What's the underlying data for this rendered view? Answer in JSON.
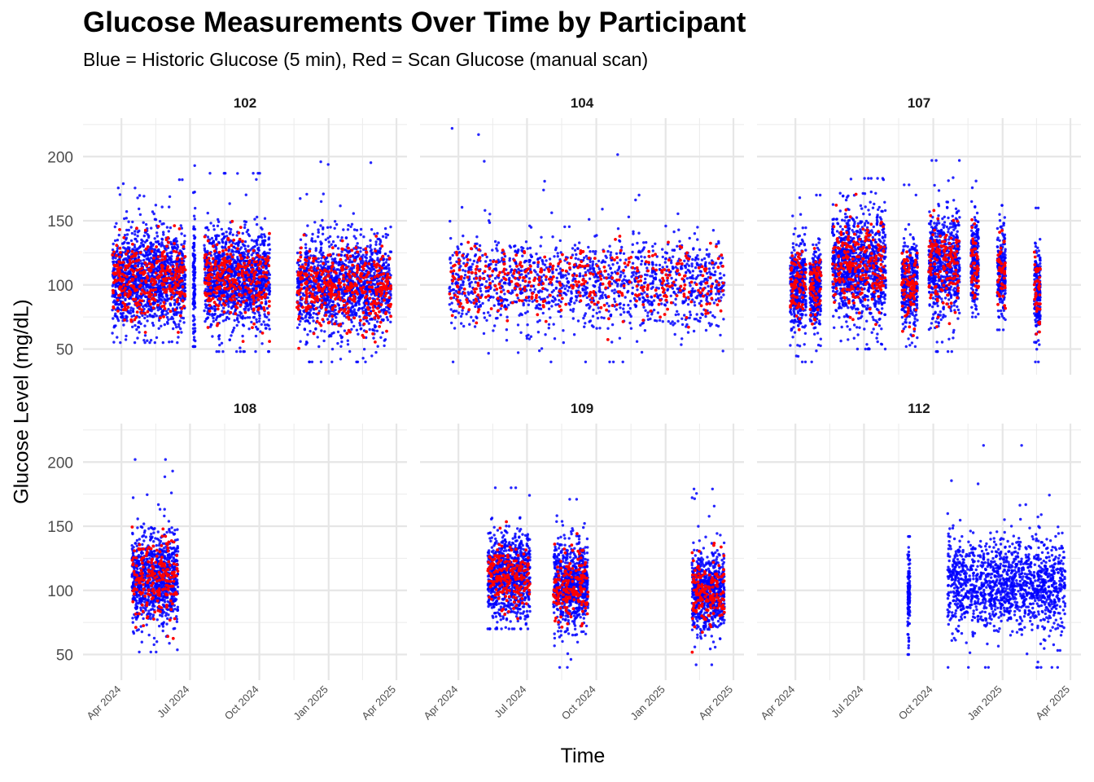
{
  "chart_data": {
    "type": "scatter",
    "title": "Glucose Measurements Over Time by Participant",
    "subtitle": "Blue = Historic Glucose (5 min), Red = Scan Glucose (manual scan)",
    "xlabel": "Time",
    "ylabel": "Glucose Level (mg/dL)",
    "x_range": [
      "2024-02-10",
      "2025-04-15"
    ],
    "ylim": [
      30,
      230
    ],
    "y_ticks": [
      50,
      100,
      150,
      200
    ],
    "x_ticks": [
      {
        "label": "Apr 2024",
        "date": "2024-04-01"
      },
      {
        "label": "Jul 2024",
        "date": "2024-07-01"
      },
      {
        "label": "Oct 2024",
        "date": "2024-10-01"
      },
      {
        "label": "Jan 2025",
        "date": "2025-01-01"
      },
      {
        "label": "Apr 2025",
        "date": "2025-04-01"
      }
    ],
    "grid": true,
    "legend": "none",
    "facet_layout": {
      "rows": 2,
      "cols": 3
    },
    "series_styles": [
      {
        "key": "historic",
        "color": "#0000ff"
      },
      {
        "key": "scan",
        "color": "#ff0000"
      }
    ],
    "panels": [
      {
        "participant": "102",
        "segments": [
          {
            "start": "2024-03-20",
            "end": "2024-06-25",
            "center": 105,
            "spread": 18,
            "min": 55,
            "max": 182,
            "scan": true
          },
          {
            "start": "2024-07-05",
            "end": "2024-07-08",
            "center": 100,
            "spread": 25,
            "min": 52,
            "max": 193,
            "scan": false
          },
          {
            "start": "2024-07-20",
            "end": "2024-10-15",
            "center": 105,
            "spread": 18,
            "min": 48,
            "max": 187,
            "scan": true
          },
          {
            "start": "2024-11-20",
            "end": "2025-03-25",
            "center": 100,
            "spread": 18,
            "min": 40,
            "max": 196,
            "scan": true
          }
        ]
      },
      {
        "participant": "104",
        "segments": [
          {
            "start": "2024-03-20",
            "end": "2025-03-20",
            "center": 102,
            "spread": 17,
            "min": 40,
            "max": 222,
            "scan": true
          }
        ]
      },
      {
        "participant": "107",
        "segments": [
          {
            "start": "2024-03-25",
            "end": "2024-04-15",
            "center": 100,
            "spread": 17,
            "min": 40,
            "max": 168,
            "scan": true
          },
          {
            "start": "2024-04-20",
            "end": "2024-05-05",
            "center": 98,
            "spread": 16,
            "min": 40,
            "max": 170,
            "scan": true
          },
          {
            "start": "2024-05-20",
            "end": "2024-07-30",
            "center": 115,
            "spread": 20,
            "min": 50,
            "max": 183,
            "scan": true
          },
          {
            "start": "2024-08-20",
            "end": "2024-09-10",
            "center": 100,
            "spread": 16,
            "min": 52,
            "max": 178,
            "scan": true
          },
          {
            "start": "2024-09-25",
            "end": "2024-11-05",
            "center": 115,
            "spread": 20,
            "min": 48,
            "max": 197,
            "scan": true
          },
          {
            "start": "2024-11-20",
            "end": "2024-11-30",
            "center": 118,
            "spread": 17,
            "min": 75,
            "max": 181,
            "scan": true
          },
          {
            "start": "2024-12-25",
            "end": "2025-01-05",
            "center": 110,
            "spread": 15,
            "min": 65,
            "max": 162,
            "scan": true
          },
          {
            "start": "2025-02-12",
            "end": "2025-02-20",
            "center": 95,
            "spread": 17,
            "min": 40,
            "max": 160,
            "scan": true
          }
        ]
      },
      {
        "participant": "108",
        "segments": [
          {
            "start": "2024-04-15",
            "end": "2024-06-15",
            "center": 110,
            "spread": 18,
            "min": 52,
            "max": 202,
            "scan": true
          }
        ]
      },
      {
        "participant": "109",
        "segments": [
          {
            "start": "2024-05-10",
            "end": "2024-07-05",
            "center": 112,
            "spread": 16,
            "min": 70,
            "max": 180,
            "scan": true
          },
          {
            "start": "2024-08-05",
            "end": "2024-09-20",
            "center": 105,
            "spread": 17,
            "min": 40,
            "max": 171,
            "scan": true
          },
          {
            "start": "2025-02-05",
            "end": "2025-03-20",
            "center": 98,
            "spread": 15,
            "min": 42,
            "max": 179,
            "scan": true
          }
        ]
      },
      {
        "participant": "112",
        "segments": [
          {
            "start": "2024-08-28",
            "end": "2024-08-31",
            "center": 100,
            "spread": 18,
            "min": 50,
            "max": 142,
            "scan": false
          },
          {
            "start": "2024-10-20",
            "end": "2025-03-25",
            "center": 105,
            "spread": 18,
            "min": 40,
            "max": 213,
            "scan": false
          }
        ]
      }
    ]
  }
}
